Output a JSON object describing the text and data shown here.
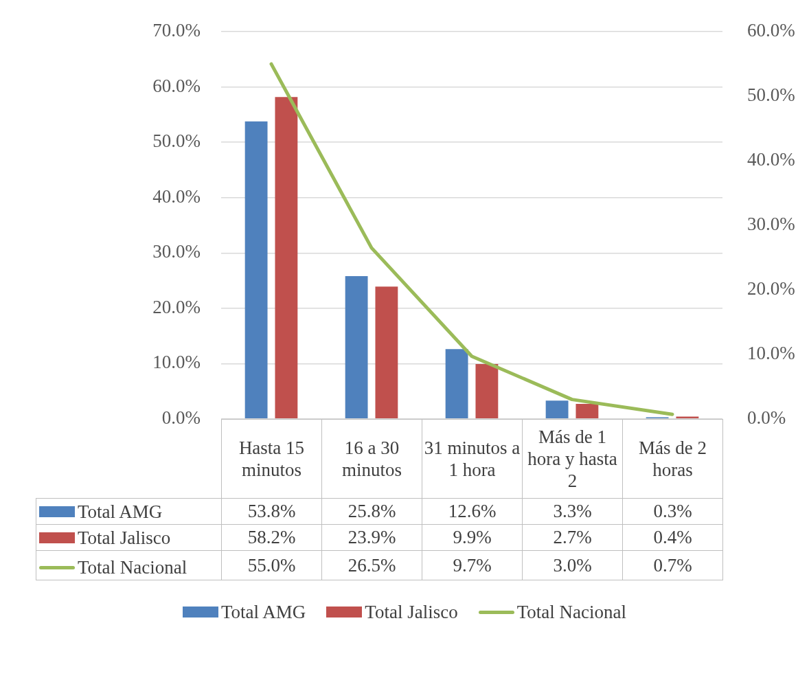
{
  "chart_data": {
    "type": "bar",
    "categories": [
      "Hasta 15 minutos",
      "16 a 30 minutos",
      "31 minutos a 1 hora",
      "Más de 1 hora y hasta 2",
      "Más de 2 horas"
    ],
    "series": [
      {
        "name": "Total AMG",
        "color": "#4f81bd",
        "values": [
          53.8,
          25.8,
          12.6,
          3.3,
          0.3
        ],
        "value_labels": [
          "53.8%",
          "25.8%",
          "12.6%",
          "3.3%",
          "0.3%"
        ]
      },
      {
        "name": "Total Jalisco",
        "color": "#c0504d",
        "values": [
          58.2,
          23.9,
          9.9,
          2.7,
          0.4
        ],
        "value_labels": [
          "58.2%",
          "23.9%",
          "9.9%",
          "2.7%",
          "0.4%"
        ]
      },
      {
        "name": "Total Nacional",
        "type": "line",
        "axis": "y2",
        "color": "#9bbb59",
        "values": [
          55.0,
          26.5,
          9.7,
          3.0,
          0.7
        ],
        "value_labels": [
          "55.0%",
          "26.5%",
          "9.7%",
          "3.0%",
          "0.7%"
        ]
      }
    ],
    "ylim": [
      0,
      70
    ],
    "yticks": [
      {
        "value": 0,
        "label": "0.0%"
      },
      {
        "value": 10,
        "label": "10.0%"
      },
      {
        "value": 20,
        "label": "20.0%"
      },
      {
        "value": 30,
        "label": "30.0%"
      },
      {
        "value": 40,
        "label": "40.0%"
      },
      {
        "value": 50,
        "label": "50.0%"
      },
      {
        "value": 60,
        "label": "60.0%"
      },
      {
        "value": 70,
        "label": "70.0%"
      }
    ],
    "y2lim": [
      0,
      60
    ],
    "y2ticks": [
      {
        "value": 0,
        "label": "0.0%"
      },
      {
        "value": 10,
        "label": "10.0%"
      },
      {
        "value": 20,
        "label": "20.0%"
      },
      {
        "value": 30,
        "label": "30.0%"
      },
      {
        "value": 40,
        "label": "40.0%"
      },
      {
        "value": 50,
        "label": "50.0%"
      },
      {
        "value": 60,
        "label": "60.0%"
      }
    ],
    "grid": "y",
    "legend": "bottom"
  }
}
